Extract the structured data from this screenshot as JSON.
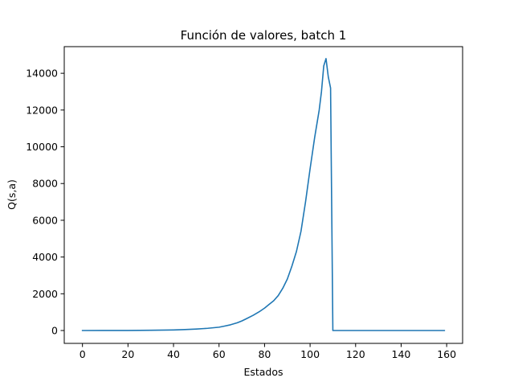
{
  "chart_data": {
    "type": "line",
    "title": "Función de valores, batch 1",
    "xlabel": "Estados",
    "ylabel": "Q(s,a)",
    "xlim": [
      -8,
      167
    ],
    "ylim": [
      -700,
      15450
    ],
    "xticks": [
      0,
      20,
      40,
      60,
      80,
      100,
      120,
      140,
      160
    ],
    "yticks": [
      0,
      2000,
      4000,
      6000,
      8000,
      10000,
      12000,
      14000
    ],
    "grid": false,
    "line_color": "#1f77b4",
    "series": [
      {
        "x": [
          0,
          10,
          20,
          30,
          40,
          45,
          50,
          55,
          60,
          62,
          65,
          68,
          70,
          72,
          75,
          78,
          80,
          82,
          84,
          86,
          88,
          90,
          92,
          94,
          96,
          98,
          100,
          102,
          104,
          105,
          106,
          107,
          108,
          109,
          110,
          120,
          130,
          140,
          150,
          159
        ],
        "y": [
          0,
          2,
          5,
          12,
          30,
          50,
          80,
          120,
          180,
          230,
          310,
          420,
          520,
          640,
          830,
          1050,
          1220,
          1420,
          1620,
          1900,
          2300,
          2800,
          3500,
          4300,
          5400,
          7000,
          8800,
          10500,
          12000,
          13000,
          14400,
          14800,
          13800,
          13200,
          0,
          0,
          0,
          0,
          0,
          0
        ]
      }
    ]
  }
}
